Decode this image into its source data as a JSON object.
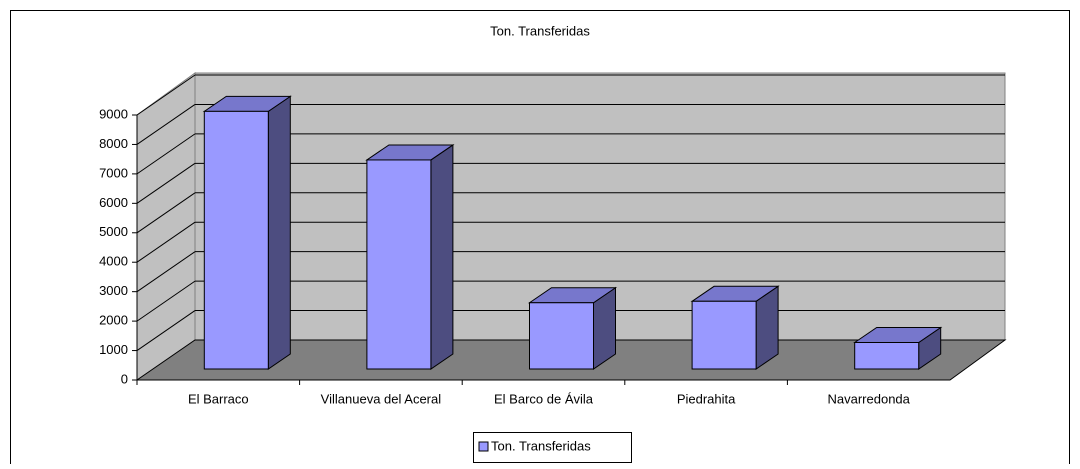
{
  "chart_data": {
    "type": "bar3d",
    "title": "Ton. Transferidas",
    "categories": [
      "El Barraco",
      "Villanueva del Aceral",
      "El Barco de Ávila",
      "Piedrahita",
      "Navarredonda"
    ],
    "series": [
      {
        "name": "Ton. Transferidas",
        "color": "#9999ff",
        "values": [
          8750,
          7100,
          2250,
          2300,
          900
        ]
      }
    ],
    "ylim": [
      0,
      9000
    ],
    "yticks": [
      0,
      1000,
      2000,
      3000,
      4000,
      5000,
      6000,
      7000,
      8000,
      9000
    ],
    "grid": true,
    "legend": "bottom"
  }
}
